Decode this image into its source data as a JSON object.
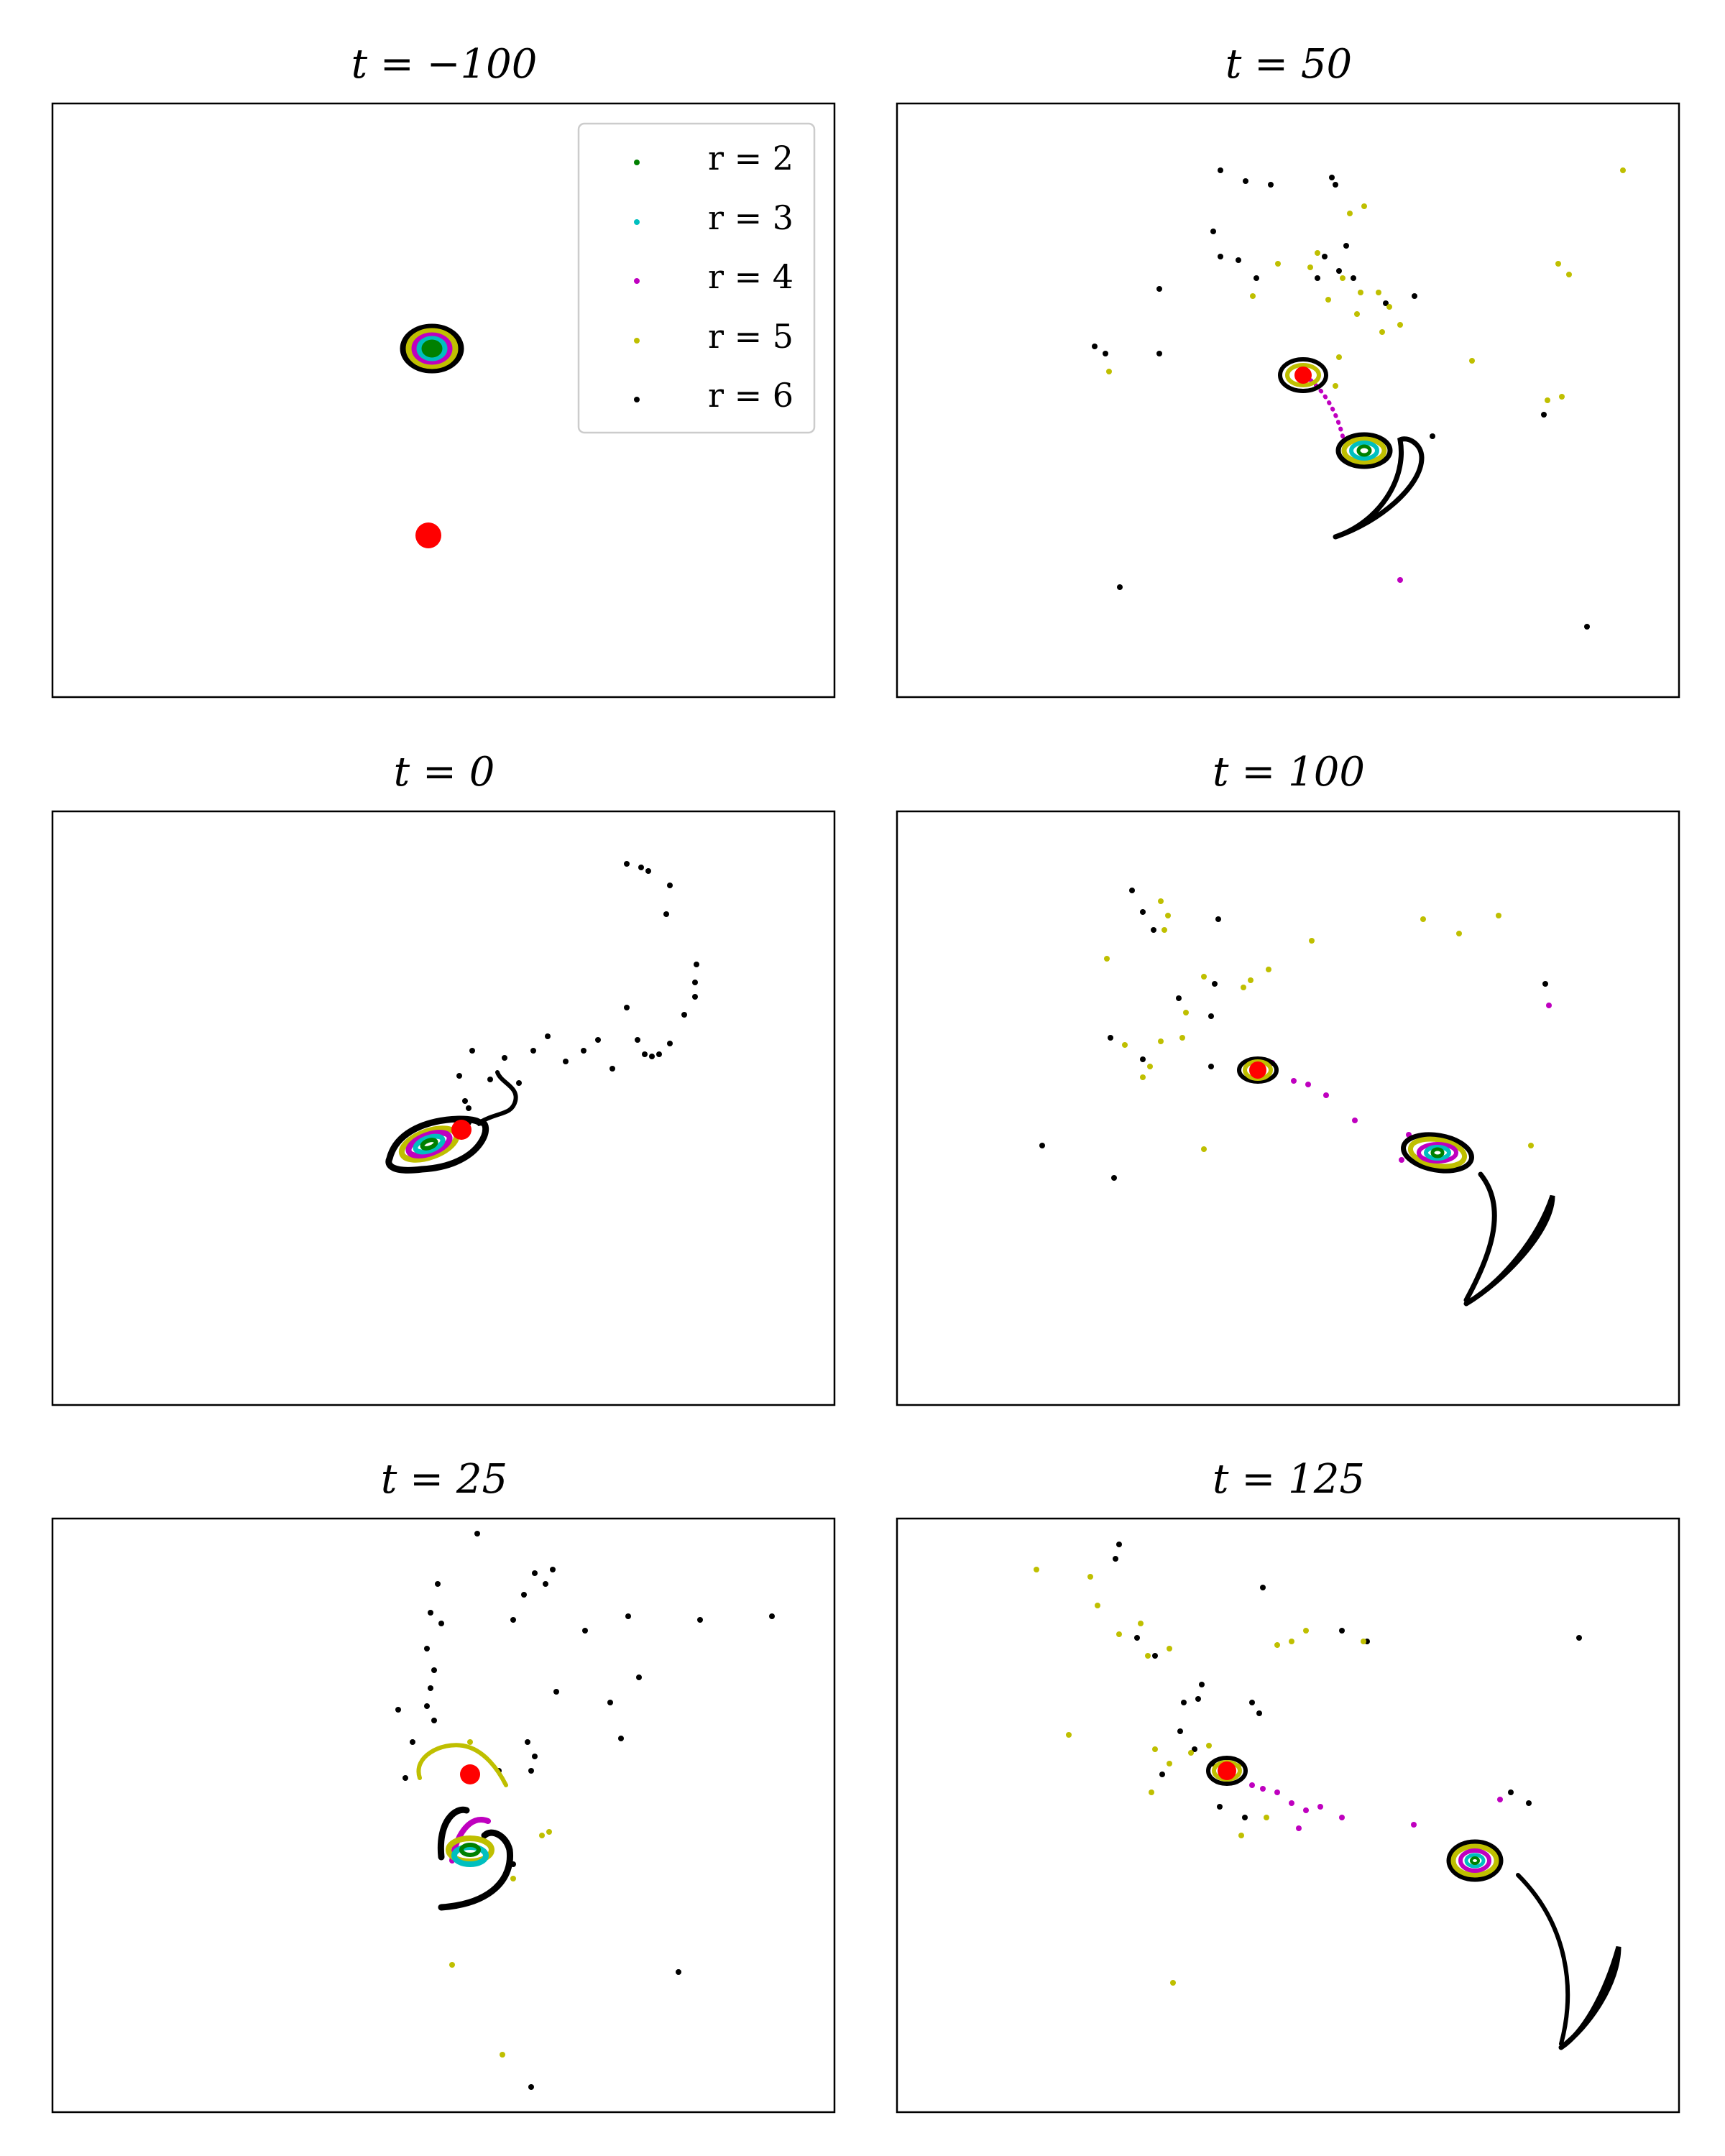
{
  "figure": {
    "legend_title_prefix": "r",
    "legend_placement": "upper right (first panel)"
  },
  "colors": {
    "r2": "#008000",
    "r3": "#00bfbf",
    "r4": "#bf00bf",
    "r5": "#bfbf00",
    "r6": "#000000",
    "perturber": "#ff0000",
    "frame": "#000000"
  },
  "chart_data": [
    {
      "type": "scatter",
      "panel": "t=-100",
      "title": "t = −100",
      "xticks": false,
      "yticks": false,
      "legend": [
        "r = 2",
        "r = 3",
        "r = 4",
        "r = 5",
        "r = 6"
      ],
      "rings": [
        {
          "name": "r = 2",
          "color": "#008000",
          "rx": 0.1,
          "ry": 0.08
        },
        {
          "name": "r = 3",
          "color": "#00bfbf",
          "rx": 0.17,
          "ry": 0.13
        },
        {
          "name": "r = 4",
          "color": "#bf00bf",
          "rx": 0.24,
          "ry": 0.18
        },
        {
          "name": "r = 5",
          "color": "#bfbf00",
          "rx": 0.32,
          "ry": 0.24
        },
        {
          "name": "r = 6",
          "color": "#000000",
          "rx": 0.4,
          "ry": 0.3
        }
      ],
      "galaxy_center": [
        0,
        0
      ],
      "perturber": [
        -0.05,
        -2.6
      ]
    },
    {
      "type": "scatter",
      "panel": "t=0",
      "title": "t = 0",
      "xticks": false,
      "yticks": false,
      "galaxy_center": [
        0,
        0
      ],
      "perturber": [
        0.45,
        0.2
      ],
      "series": [
        {
          "name": "r = 6",
          "color": "#000000",
          "points": [
            [
              0.55,
              0.5
            ],
            [
              0.42,
              0.95
            ],
            [
              0.6,
              1.3
            ],
            [
              0.85,
              0.9
            ],
            [
              1.05,
              1.2
            ],
            [
              1.25,
              0.85
            ],
            [
              1.45,
              1.3
            ],
            [
              1.65,
              1.5
            ],
            [
              1.9,
              1.15
            ],
            [
              2.15,
              1.3
            ],
            [
              2.35,
              1.45
            ],
            [
              2.55,
              1.05
            ],
            [
              2.75,
              1.9
            ],
            [
              2.9,
              1.45
            ],
            [
              3.0,
              1.25
            ],
            [
              3.1,
              1.22
            ],
            [
              3.2,
              1.25
            ],
            [
              3.35,
              1.4
            ],
            [
              3.55,
              1.8
            ],
            [
              3.7,
              2.25
            ],
            [
              3.72,
              2.5
            ],
            [
              3.7,
              2.05
            ],
            [
              3.3,
              3.2
            ],
            [
              3.35,
              3.6
            ],
            [
              3.05,
              3.8
            ],
            [
              2.95,
              3.85
            ],
            [
              2.75,
              3.9
            ],
            [
              0.55,
              0.3
            ],
            [
              0.5,
              0.6
            ],
            [
              0.42,
              0.35
            ]
          ]
        }
      ]
    },
    {
      "type": "scatter",
      "panel": "t=25",
      "title": "t = 25",
      "xticks": false,
      "yticks": false,
      "galaxy_center": [
        0,
        0
      ],
      "perturber": [
        0.0,
        1.05
      ],
      "series": [
        {
          "name": "r = 6",
          "color": "#000000",
          "points": [
            [
              0.1,
              4.4
            ],
            [
              -0.45,
              3.7
            ],
            [
              -0.55,
              3.3
            ],
            [
              -0.4,
              3.15
            ],
            [
              -0.6,
              2.8
            ],
            [
              -0.5,
              2.5
            ],
            [
              -0.55,
              2.25
            ],
            [
              -0.6,
              2.0
            ],
            [
              -1.0,
              1.95
            ],
            [
              -0.5,
              1.8
            ],
            [
              -0.8,
              1.5
            ],
            [
              0.6,
              3.2
            ],
            [
              0.75,
              3.55
            ],
            [
              0.9,
              3.85
            ],
            [
              1.05,
              3.7
            ],
            [
              1.15,
              3.9
            ],
            [
              1.6,
              3.05
            ],
            [
              3.2,
              3.2
            ],
            [
              2.2,
              3.25
            ],
            [
              1.95,
              2.05
            ],
            [
              2.1,
              1.55
            ],
            [
              2.35,
              2.4
            ],
            [
              2.9,
              -1.7
            ],
            [
              1.2,
              2.2
            ],
            [
              0.8,
              1.5
            ],
            [
              0.9,
              1.3
            ],
            [
              0.85,
              1.1
            ],
            [
              0.4,
              1.1
            ],
            [
              0.6,
              -0.2
            ],
            [
              -0.9,
              1.0
            ],
            [
              0.85,
              -3.3
            ],
            [
              4.2,
              3.25
            ]
          ]
        },
        {
          "name": "r = 5",
          "color": "#bfbf00",
          "points": [
            [
              1.0,
              0.2
            ],
            [
              1.1,
              0.25
            ],
            [
              0.6,
              -0.4
            ],
            [
              -0.25,
              -1.6
            ],
            [
              0.45,
              -2.85
            ],
            [
              0.0,
              1.5
            ]
          ]
        }
      ]
    },
    {
      "type": "scatter",
      "panel": "t=50",
      "title": "t = 50",
      "xticks": false,
      "yticks": false,
      "galaxy_center": [
        0,
        0
      ],
      "perturber": [
        -0.85,
        1.05
      ],
      "series": [
        {
          "name": "r = 6",
          "color": "#000000",
          "points": [
            [
              -2.0,
              3.9
            ],
            [
              -1.65,
              3.75
            ],
            [
              -1.3,
              3.7
            ],
            [
              -0.45,
              3.8
            ],
            [
              -0.4,
              3.7
            ],
            [
              -2.1,
              3.05
            ],
            [
              -2.0,
              2.7
            ],
            [
              -1.5,
              2.4
            ],
            [
              -1.75,
              2.65
            ],
            [
              -0.55,
              2.7
            ],
            [
              -0.35,
              2.5
            ],
            [
              -0.25,
              2.85
            ],
            [
              -0.65,
              2.4
            ],
            [
              -0.15,
              2.4
            ],
            [
              0.3,
              2.05
            ],
            [
              0.7,
              2.15
            ],
            [
              -2.85,
              2.25
            ],
            [
              -3.75,
              1.45
            ],
            [
              -3.6,
              1.35
            ],
            [
              -2.85,
              1.35
            ],
            [
              -3.4,
              -1.9
            ],
            [
              0.95,
              0.2
            ],
            [
              2.5,
              0.5
            ],
            [
              3.1,
              -2.45
            ]
          ]
        },
        {
          "name": "r = 5",
          "color": "#bfbf00",
          "points": [
            [
              -1.55,
              2.15
            ],
            [
              -1.2,
              2.6
            ],
            [
              -0.75,
              2.55
            ],
            [
              -0.65,
              2.75
            ],
            [
              -0.3,
              2.4
            ],
            [
              -0.5,
              2.1
            ],
            [
              -0.1,
              1.9
            ],
            [
              0.2,
              2.2
            ],
            [
              0.35,
              2.0
            ],
            [
              0.5,
              1.75
            ],
            [
              0.25,
              1.65
            ],
            [
              -0.2,
              3.3
            ],
            [
              0.0,
              3.4
            ],
            [
              -0.05,
              2.2
            ],
            [
              1.5,
              1.25
            ],
            [
              2.7,
              2.6
            ],
            [
              2.85,
              2.45
            ],
            [
              2.55,
              0.7
            ],
            [
              2.75,
              0.75
            ],
            [
              -3.55,
              1.1
            ],
            [
              3.6,
              3.9
            ],
            [
              -0.4,
              0.9
            ],
            [
              -0.35,
              1.3
            ]
          ]
        },
        {
          "name": "r = 4",
          "color": "#bf00bf",
          "points": [
            [
              0.5,
              -1.8
            ]
          ]
        }
      ]
    },
    {
      "type": "scatter",
      "panel": "t=100",
      "title": "t = 100",
      "xticks": false,
      "yticks": false,
      "galaxy_center": [
        0,
        0
      ],
      "perturber": [
        -2.5,
        1.15
      ],
      "series": [
        {
          "name": "r = 6",
          "color": "#000000",
          "points": [
            [
              -4.25,
              3.65
            ],
            [
              -4.1,
              3.35
            ],
            [
              -3.95,
              3.1
            ],
            [
              -3.05,
              3.25
            ],
            [
              -3.1,
              2.35
            ],
            [
              -3.6,
              2.15
            ],
            [
              -3.15,
              1.9
            ],
            [
              -4.1,
              1.3
            ],
            [
              -3.15,
              1.2
            ],
            [
              -4.55,
              1.6
            ],
            [
              -5.5,
              0.1
            ],
            [
              -4.5,
              -0.35
            ],
            [
              1.5,
              2.35
            ]
          ]
        },
        {
          "name": "r = 5",
          "color": "#bfbf00",
          "points": [
            [
              -3.85,
              3.5
            ],
            [
              -3.75,
              3.3
            ],
            [
              -3.8,
              3.1
            ],
            [
              -4.6,
              2.7
            ],
            [
              -3.25,
              2.45
            ],
            [
              -3.5,
              1.95
            ],
            [
              -3.55,
              1.6
            ],
            [
              -3.85,
              1.55
            ],
            [
              -4.35,
              1.5
            ],
            [
              -4.0,
              1.2
            ],
            [
              -4.1,
              1.05
            ],
            [
              -2.6,
              2.4
            ],
            [
              -2.7,
              2.3
            ],
            [
              -2.35,
              2.55
            ],
            [
              -1.75,
              2.95
            ],
            [
              -0.2,
              3.25
            ],
            [
              0.3,
              3.05
            ],
            [
              0.85,
              3.3
            ],
            [
              1.3,
              0.1
            ],
            [
              -3.25,
              0.05
            ]
          ]
        },
        {
          "name": "r = 4",
          "color": "#bf00bf",
          "points": [
            [
              -2.3,
              1.25
            ],
            [
              -2.0,
              1.0
            ],
            [
              -1.8,
              0.95
            ],
            [
              -1.55,
              0.8
            ],
            [
              -1.15,
              0.45
            ],
            [
              1.55,
              2.05
            ],
            [
              -0.5,
              -0.1
            ],
            [
              -0.4,
              0.25
            ],
            [
              0.1,
              0.2
            ]
          ]
        }
      ]
    },
    {
      "type": "scatter",
      "panel": "t=125",
      "title": "t = 125",
      "xticks": false,
      "yticks": false,
      "galaxy_center": [
        0,
        0
      ],
      "perturber": [
        -3.45,
        1.25
      ],
      "series": [
        {
          "name": "r = 6",
          "color": "#000000",
          "points": [
            [
              -4.95,
              4.4
            ],
            [
              -5.0,
              4.2
            ],
            [
              -2.95,
              3.8
            ],
            [
              -1.85,
              3.2
            ],
            [
              -1.5,
              3.05
            ],
            [
              -4.7,
              3.1
            ],
            [
              -4.45,
              2.85
            ],
            [
              -3.8,
              2.45
            ],
            [
              -3.85,
              2.25
            ],
            [
              -3.1,
              2.2
            ],
            [
              -3.0,
              2.05
            ],
            [
              -4.05,
              2.2
            ],
            [
              -4.1,
              1.8
            ],
            [
              -3.9,
              1.55
            ],
            [
              -3.65,
              1.35
            ],
            [
              -4.35,
              1.2
            ],
            [
              -3.55,
              0.75
            ],
            [
              -3.2,
              0.6
            ],
            [
              1.45,
              3.1
            ],
            [
              0.75,
              0.8
            ],
            [
              0.5,
              0.95
            ]
          ]
        },
        {
          "name": "r = 5",
          "color": "#bfbf00",
          "points": [
            [
              -6.1,
              4.05
            ],
            [
              -5.35,
              3.95
            ],
            [
              -5.25,
              3.55
            ],
            [
              -4.95,
              3.15
            ],
            [
              -4.65,
              3.3
            ],
            [
              -4.55,
              2.85
            ],
            [
              -4.25,
              2.95
            ],
            [
              -2.75,
              3.0
            ],
            [
              -2.55,
              3.05
            ],
            [
              -2.35,
              3.2
            ],
            [
              -1.55,
              3.05
            ],
            [
              -5.65,
              1.75
            ],
            [
              -4.45,
              1.55
            ],
            [
              -4.25,
              1.35
            ],
            [
              -4.5,
              0.95
            ],
            [
              -3.95,
              1.5
            ],
            [
              -3.7,
              1.6
            ],
            [
              -3.25,
              1.35
            ],
            [
              -4.2,
              -1.7
            ],
            [
              -3.25,
              0.35
            ],
            [
              -2.9,
              0.6
            ]
          ]
        },
        {
          "name": "r = 4",
          "color": "#bf00bf",
          "points": [
            [
              -3.1,
              1.05
            ],
            [
              -2.95,
              1.0
            ],
            [
              -2.75,
              0.95
            ],
            [
              -2.55,
              0.8
            ],
            [
              -2.35,
              0.7
            ],
            [
              -2.15,
              0.75
            ],
            [
              -2.45,
              0.45
            ],
            [
              -1.85,
              0.6
            ],
            [
              -0.85,
              0.5
            ],
            [
              0.35,
              0.85
            ]
          ]
        }
      ]
    }
  ]
}
